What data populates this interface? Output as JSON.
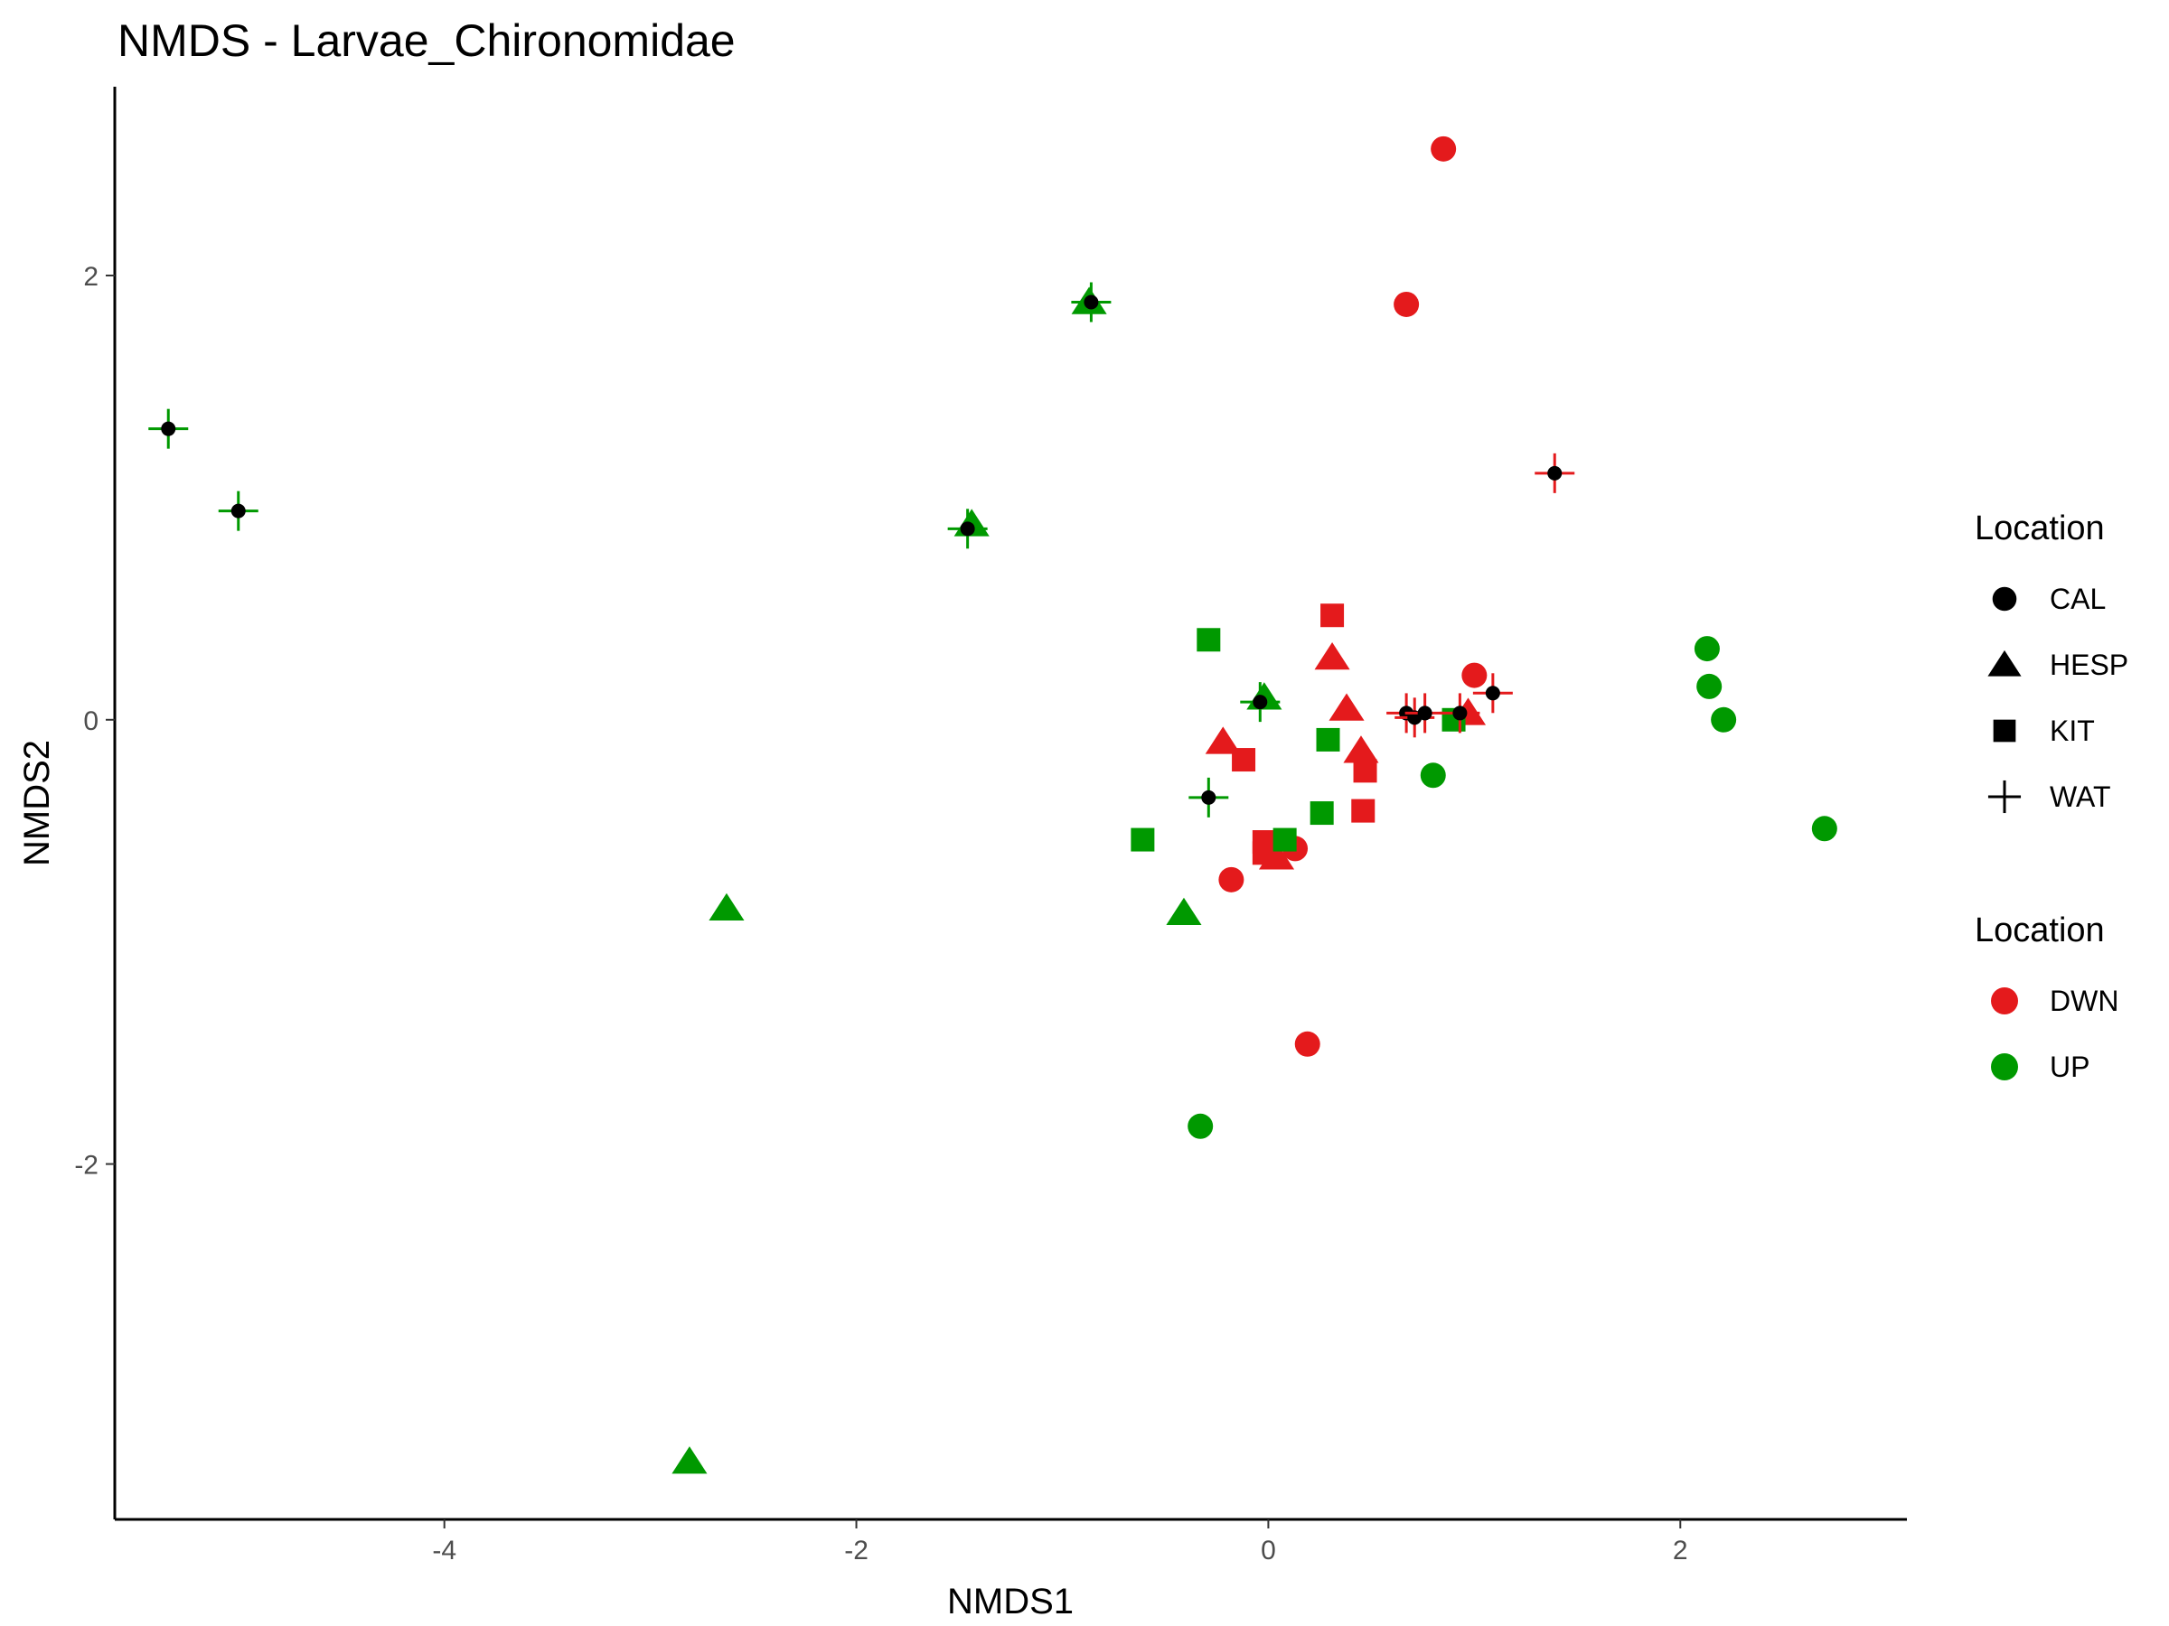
{
  "chart_data": {
    "type": "scatter",
    "title": "NMDS - Larvae_Chironomidae",
    "xlabel": "NMDS1",
    "ylabel": "NMDS2",
    "xlim": [
      -5.6,
      3.1
    ],
    "ylim": [
      -3.6,
      2.85
    ],
    "xticks": [
      -4,
      -2,
      0,
      2
    ],
    "yticks": [
      -2,
      0,
      2
    ],
    "xtick_labels": [
      "-4",
      "-2",
      "0",
      "2"
    ],
    "ytick_labels": [
      "-2",
      "0",
      "2"
    ],
    "grid": false,
    "legend_position": "right",
    "colors": {
      "DWN": "#e41a1c",
      "UP": "#009900",
      "centroid": "#000000"
    },
    "legends": [
      {
        "title": "Location",
        "kind": "shape",
        "entries": [
          {
            "label": "CAL",
            "shape": "circle"
          },
          {
            "label": "HESP",
            "shape": "triangle"
          },
          {
            "label": "KIT",
            "shape": "square"
          },
          {
            "label": "WAT",
            "shape": "plus"
          }
        ]
      },
      {
        "title": "Location",
        "kind": "color",
        "entries": [
          {
            "label": "DWN",
            "color": "#e41a1c"
          },
          {
            "label": "UP",
            "color": "#009900"
          }
        ]
      }
    ],
    "points": [
      {
        "x": 0.85,
        "y": 2.57,
        "shape": "circle",
        "group": "DWN"
      },
      {
        "x": 0.67,
        "y": 1.87,
        "shape": "circle",
        "group": "DWN"
      },
      {
        "x": 1.0,
        "y": 0.2,
        "shape": "circle",
        "group": "DWN"
      },
      {
        "x": 0.13,
        "y": -0.58,
        "shape": "circle",
        "group": "DWN"
      },
      {
        "x": -0.18,
        "y": -0.72,
        "shape": "circle",
        "group": "DWN"
      },
      {
        "x": 0.19,
        "y": -1.46,
        "shape": "circle",
        "group": "DWN"
      },
      {
        "x": 2.13,
        "y": 0.32,
        "shape": "circle",
        "group": "UP"
      },
      {
        "x": 2.14,
        "y": 0.15,
        "shape": "circle",
        "group": "UP"
      },
      {
        "x": 2.21,
        "y": 0.0,
        "shape": "circle",
        "group": "UP"
      },
      {
        "x": 2.7,
        "y": -0.49,
        "shape": "circle",
        "group": "UP"
      },
      {
        "x": 0.8,
        "y": -0.25,
        "shape": "circle",
        "group": "UP"
      },
      {
        "x": -0.33,
        "y": -1.83,
        "shape": "circle",
        "group": "UP"
      },
      {
        "x": 0.31,
        "y": 0.28,
        "shape": "triangle",
        "group": "DWN"
      },
      {
        "x": 0.38,
        "y": 0.05,
        "shape": "triangle",
        "group": "DWN"
      },
      {
        "x": -0.22,
        "y": -0.1,
        "shape": "triangle",
        "group": "DWN"
      },
      {
        "x": 0.45,
        "y": -0.14,
        "shape": "triangle",
        "group": "DWN"
      },
      {
        "x": 0.04,
        "y": -0.62,
        "shape": "triangle",
        "group": "DWN"
      },
      {
        "x": 0.97,
        "y": 0.03,
        "shape": "triangle",
        "group": "DWN"
      },
      {
        "x": -0.87,
        "y": 1.88,
        "shape": "triangle",
        "group": "UP"
      },
      {
        "x": -1.44,
        "y": 0.88,
        "shape": "triangle",
        "group": "UP"
      },
      {
        "x": -0.02,
        "y": 0.1,
        "shape": "triangle",
        "group": "UP"
      },
      {
        "x": -2.63,
        "y": -0.85,
        "shape": "triangle",
        "group": "UP"
      },
      {
        "x": -0.41,
        "y": -0.87,
        "shape": "triangle",
        "group": "UP"
      },
      {
        "x": -2.81,
        "y": -3.34,
        "shape": "triangle",
        "group": "UP"
      },
      {
        "x": 0.31,
        "y": 0.47,
        "shape": "square",
        "group": "DWN"
      },
      {
        "x": -0.12,
        "y": -0.18,
        "shape": "square",
        "group": "DWN"
      },
      {
        "x": 0.47,
        "y": -0.23,
        "shape": "square",
        "group": "DWN"
      },
      {
        "x": 0.46,
        "y": -0.41,
        "shape": "square",
        "group": "DWN"
      },
      {
        "x": -0.02,
        "y": -0.55,
        "shape": "square",
        "group": "DWN"
      },
      {
        "x": -0.02,
        "y": -0.6,
        "shape": "square",
        "group": "DWN"
      },
      {
        "x": -0.29,
        "y": 0.36,
        "shape": "square",
        "group": "UP"
      },
      {
        "x": 0.29,
        "y": -0.09,
        "shape": "square",
        "group": "UP"
      },
      {
        "x": 0.9,
        "y": 0.0,
        "shape": "square",
        "group": "UP"
      },
      {
        "x": -0.61,
        "y": -0.54,
        "shape": "square",
        "group": "UP"
      },
      {
        "x": 0.26,
        "y": -0.42,
        "shape": "square",
        "group": "UP"
      },
      {
        "x": 0.08,
        "y": -0.54,
        "shape": "square",
        "group": "UP"
      }
    ],
    "centroids": [
      {
        "x": -5.34,
        "y": 1.31,
        "group": "UP"
      },
      {
        "x": -5.0,
        "y": 0.94,
        "group": "UP"
      },
      {
        "x": -0.86,
        "y": 1.88,
        "group": "UP"
      },
      {
        "x": -1.46,
        "y": 0.86,
        "group": "UP"
      },
      {
        "x": -0.04,
        "y": 0.08,
        "group": "UP"
      },
      {
        "x": -0.29,
        "y": -0.35,
        "group": "UP"
      },
      {
        "x": 1.39,
        "y": 1.11,
        "group": "DWN"
      },
      {
        "x": 0.67,
        "y": 0.03,
        "group": "DWN"
      },
      {
        "x": 0.71,
        "y": 0.01,
        "group": "DWN"
      },
      {
        "x": 0.76,
        "y": 0.03,
        "group": "DWN"
      },
      {
        "x": 0.93,
        "y": 0.03,
        "group": "DWN"
      },
      {
        "x": 1.09,
        "y": 0.12,
        "group": "DWN"
      }
    ]
  }
}
